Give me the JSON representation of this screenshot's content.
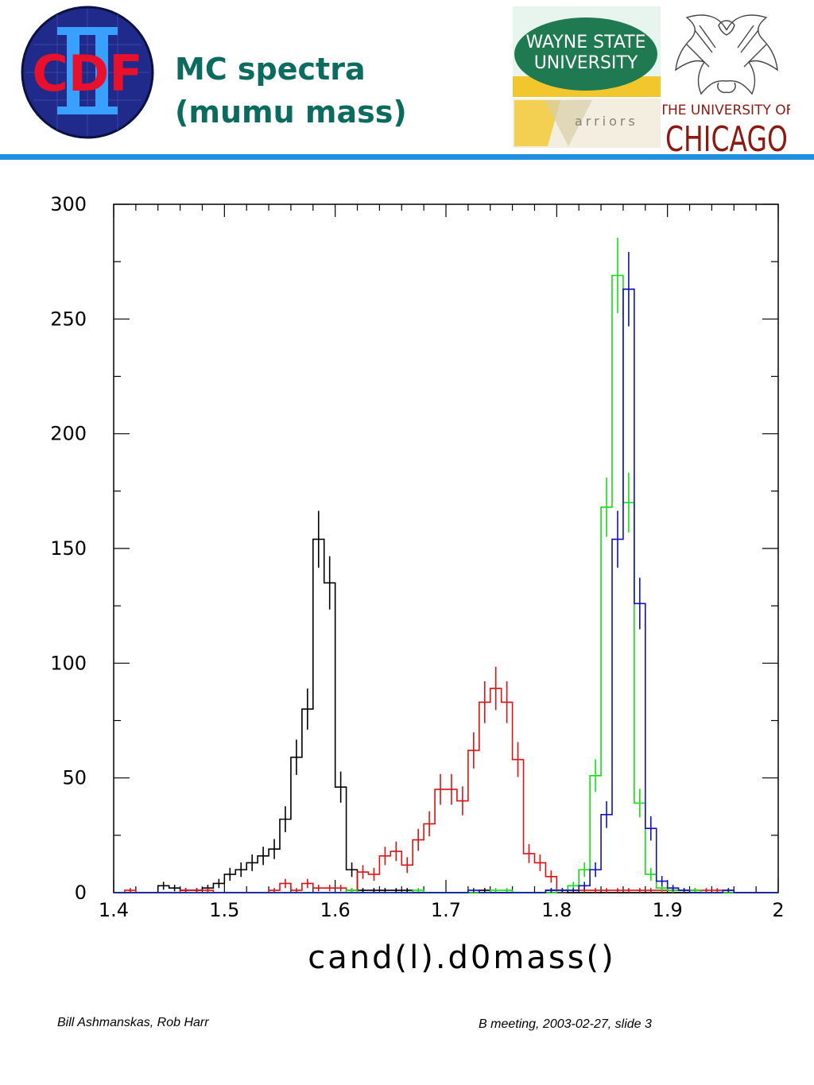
{
  "slide": {
    "title_line1": "MC spectra",
    "title_line2": "(mumu mass)",
    "footer_left": "Bill Ashmanskas, Rob Harr",
    "footer_right": "B meeting, 2003-02-27, slide 3"
  },
  "logos": {
    "cdf": {
      "text": "CDF",
      "numeral": "II"
    },
    "wayne_state": {
      "line1": "WAYNE STATE",
      "line2": "UNIVERSITY",
      "tagline": "arriors"
    },
    "chicago": {
      "line1": "THE UNIVERSITY OF",
      "line2": "CHICAGO"
    }
  },
  "colors": {
    "title": "#0b6b5f",
    "rule": "#1e8fe0",
    "black_series": "#000000",
    "red_series": "#e01010",
    "green_series": "#10e010",
    "blue_series": "#1010c0"
  },
  "chart_data": {
    "type": "line",
    "xlabel": "cand(l).d0mass()",
    "ylabel": "",
    "title": "",
    "xlim": [
      1.4,
      2.0
    ],
    "ylim": [
      0,
      300
    ],
    "x_ticks": [
      "1.4",
      "1.5",
      "1.6",
      "1.7",
      "1.8",
      "1.9",
      "2"
    ],
    "y_ticks": [
      "0",
      "50",
      "100",
      "150",
      "200",
      "250",
      "300"
    ],
    "bin_width": 0.01,
    "grid": false,
    "series": [
      {
        "color": "#000000",
        "bin_starts": [
          1.44,
          1.45,
          1.46,
          1.47,
          1.48,
          1.49,
          1.5,
          1.51,
          1.52,
          1.53,
          1.54,
          1.55,
          1.56,
          1.57,
          1.58,
          1.59,
          1.6,
          1.61,
          1.62,
          1.63,
          1.64,
          1.65,
          1.66,
          1.73,
          1.79,
          1.8
        ],
        "values": [
          3,
          2,
          1,
          1,
          2,
          4,
          8,
          10,
          13,
          16,
          19,
          32,
          59,
          80,
          154,
          135,
          46,
          10,
          1,
          1,
          1,
          1,
          1,
          1,
          1,
          1
        ]
      },
      {
        "color": "#e01010",
        "bin_starts": [
          1.41,
          1.46,
          1.47,
          1.48,
          1.54,
          1.55,
          1.56,
          1.57,
          1.58,
          1.59,
          1.6,
          1.61,
          1.62,
          1.63,
          1.64,
          1.65,
          1.66,
          1.67,
          1.68,
          1.69,
          1.7,
          1.71,
          1.72,
          1.73,
          1.74,
          1.75,
          1.76,
          1.77,
          1.78,
          1.79,
          1.8,
          1.81,
          1.82,
          1.83,
          1.84,
          1.85,
          1.86,
          1.87,
          1.88,
          1.89,
          1.9,
          1.91,
          1.92,
          1.93,
          1.94,
          1.95
        ],
        "values": [
          1,
          1,
          1,
          1,
          1,
          4,
          1,
          4,
          2,
          2,
          2,
          1,
          9,
          8,
          16,
          18,
          12,
          23,
          30,
          45,
          45,
          40,
          62,
          83,
          89,
          83,
          58,
          17,
          13,
          7,
          1,
          1,
          1,
          1,
          1,
          1,
          1,
          1,
          1,
          1,
          1,
          1,
          1,
          1,
          1,
          1
        ]
      },
      {
        "color": "#10e010",
        "bin_starts": [
          1.61,
          1.67,
          1.74,
          1.75,
          1.8,
          1.81,
          1.82,
          1.83,
          1.84,
          1.85,
          1.86,
          1.87,
          1.88,
          1.89,
          1.9,
          1.91,
          1.92
        ],
        "values": [
          1,
          1,
          1,
          1,
          1,
          3,
          10,
          51,
          168,
          269,
          170,
          39,
          8,
          2,
          1,
          1,
          1
        ]
      },
      {
        "color": "#1010c0",
        "bin_starts": [
          1.72,
          1.79,
          1.8,
          1.81,
          1.82,
          1.83,
          1.84,
          1.85,
          1.86,
          1.87,
          1.88,
          1.89,
          1.9,
          1.91,
          1.95
        ],
        "values": [
          1,
          1,
          1,
          1,
          3,
          10,
          34,
          154,
          263,
          126,
          28,
          5,
          2,
          1,
          1
        ]
      }
    ]
  }
}
